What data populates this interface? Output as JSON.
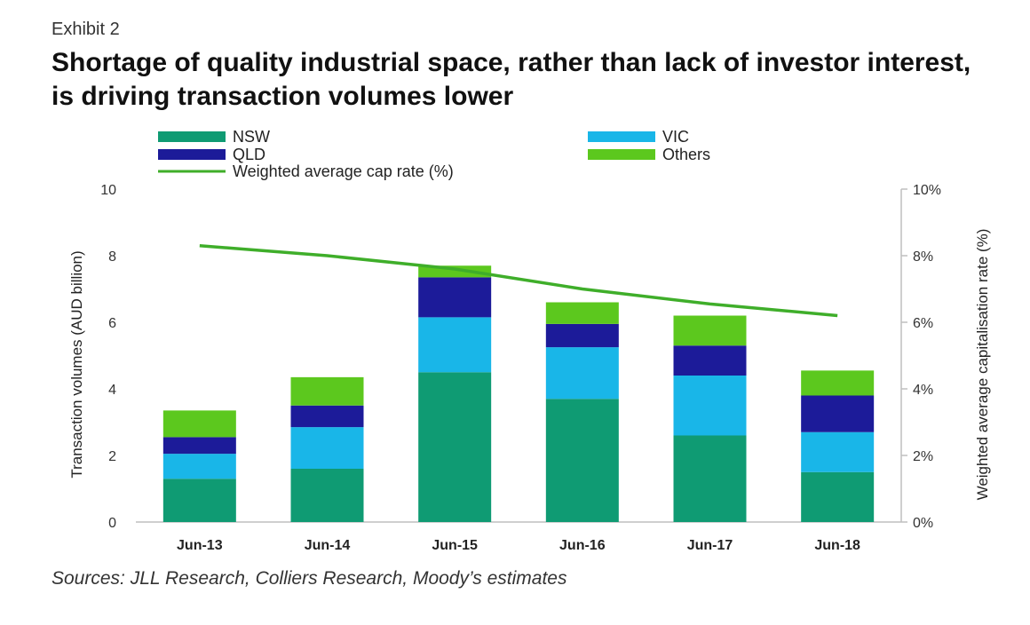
{
  "header": {
    "exhibit": "Exhibit 2",
    "title": "Shortage of quality industrial space, rather than lack of investor interest, is driving transaction volumes lower"
  },
  "footer": {
    "source": "Sources: JLL Research, Colliers Research, Moody’s estimates"
  },
  "chart_data": {
    "type": "bar",
    "stacked": true,
    "categories": [
      "Jun-13",
      "Jun-14",
      "Jun-15",
      "Jun-16",
      "Jun-17",
      "Jun-18"
    ],
    "series": [
      {
        "name": "NSW",
        "color": "#0f9b73",
        "values": [
          1.3,
          1.6,
          4.5,
          3.7,
          2.6,
          1.5
        ]
      },
      {
        "name": "VIC",
        "color": "#19b6e8",
        "values": [
          0.75,
          1.25,
          1.65,
          1.55,
          1.8,
          1.2
        ]
      },
      {
        "name": "QLD",
        "color": "#1c1b99",
        "values": [
          0.5,
          0.65,
          1.2,
          0.7,
          0.9,
          1.1
        ]
      },
      {
        "name": "Others",
        "color": "#5cc81e",
        "values": [
          0.8,
          0.85,
          0.35,
          0.65,
          0.9,
          0.75
        ]
      }
    ],
    "line_series": {
      "name": "Weighted average cap rate (%)",
      "color": "#3fae2a",
      "values": [
        8.3,
        8.0,
        7.6,
        7.0,
        6.55,
        6.2
      ]
    },
    "ylabel": "Transaction volumes (AUD billion)",
    "y2label": "Weighted average capitalisation rate (%)",
    "ylim": [
      0,
      10
    ],
    "y2lim": [
      0,
      10
    ],
    "yticks": [
      "0",
      "2",
      "4",
      "6",
      "8",
      "10"
    ],
    "y2ticks": [
      "0%",
      "2%",
      "4%",
      "6%",
      "8%",
      "10%"
    ],
    "legend_position": "top"
  }
}
